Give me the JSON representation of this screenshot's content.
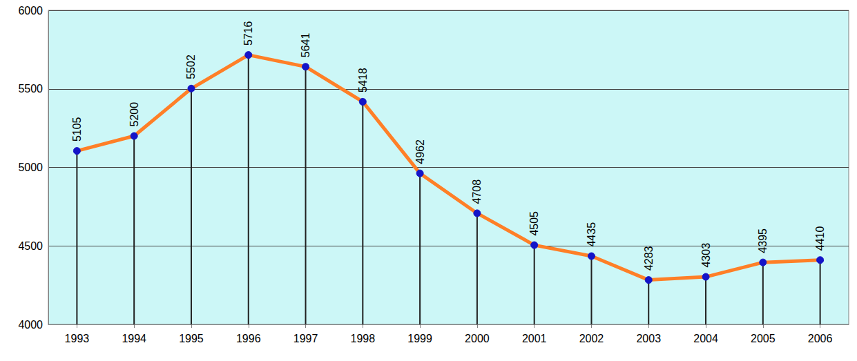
{
  "chart_data": {
    "type": "line",
    "categories": [
      "1993",
      "1994",
      "1995",
      "1996",
      "1997",
      "1998",
      "1999",
      "2000",
      "2001",
      "2002",
      "2003",
      "2004",
      "2005",
      "2006"
    ],
    "values": [
      5105,
      5200,
      5502,
      5716,
      5641,
      5418,
      4962,
      4708,
      4505,
      4435,
      4283,
      4303,
      4395,
      4410
    ],
    "color": "#ff7f27",
    "marker": "circle",
    "ylim": [
      4000,
      6000
    ],
    "yticks": [
      4000,
      4500,
      5000,
      5500,
      6000
    ],
    "grid": true,
    "data_labels": true
  }
}
